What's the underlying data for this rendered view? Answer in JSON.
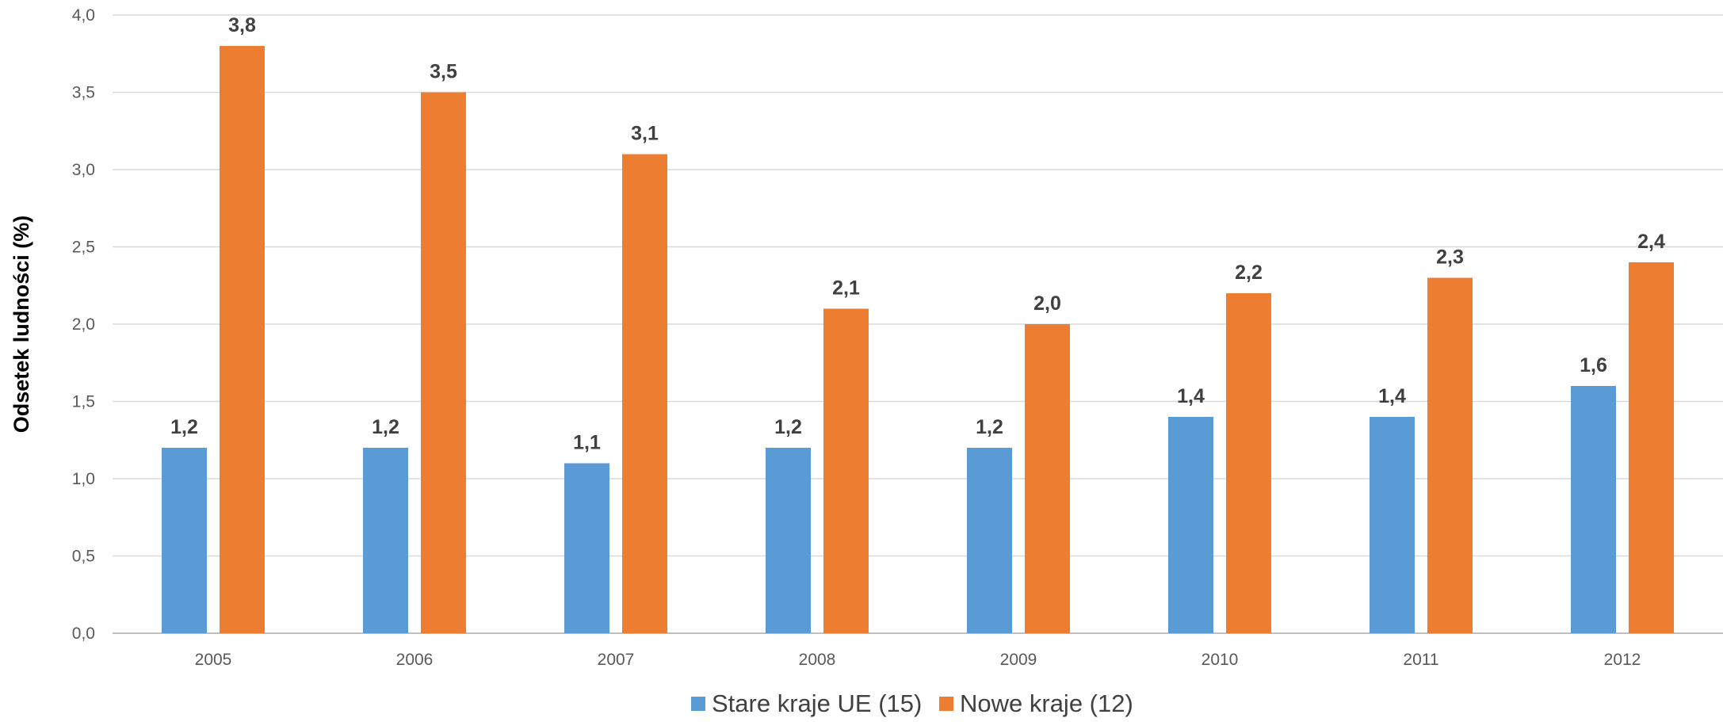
{
  "chart_data": {
    "type": "bar",
    "title": "",
    "xlabel": "",
    "ylabel": "Odsetek ludności (%)",
    "categories": [
      "2005",
      "2006",
      "2007",
      "2008",
      "2009",
      "2010",
      "2011",
      "2012"
    ],
    "series": [
      {
        "name": "Stare kraje UE (15)",
        "color": "#5B9BD5",
        "values": [
          1.2,
          1.2,
          1.1,
          1.2,
          1.2,
          1.4,
          1.4,
          1.6
        ],
        "labels": [
          "1,2",
          "1,2",
          "1,1",
          "1,2",
          "1,2",
          "1,4",
          "1,4",
          "1,6"
        ]
      },
      {
        "name": "Nowe kraje (12)",
        "color": "#ED7D31",
        "values": [
          3.8,
          3.5,
          3.1,
          2.1,
          2.0,
          2.2,
          2.3,
          2.4
        ],
        "labels": [
          "3,8",
          "3,5",
          "3,1",
          "2,1",
          "2,0",
          "2,2",
          "2,3",
          "2,4"
        ]
      }
    ],
    "ylim": [
      0,
      4
    ],
    "yticks": [
      0,
      0.5,
      1,
      1.5,
      2,
      2.5,
      3,
      3.5,
      4
    ],
    "ytick_labels": [
      "0,0",
      "0,5",
      "1,0",
      "1,5",
      "2,0",
      "2,5",
      "3,0",
      "3,5",
      "4,0"
    ],
    "grid": true,
    "legend_position": "bottom-center"
  }
}
